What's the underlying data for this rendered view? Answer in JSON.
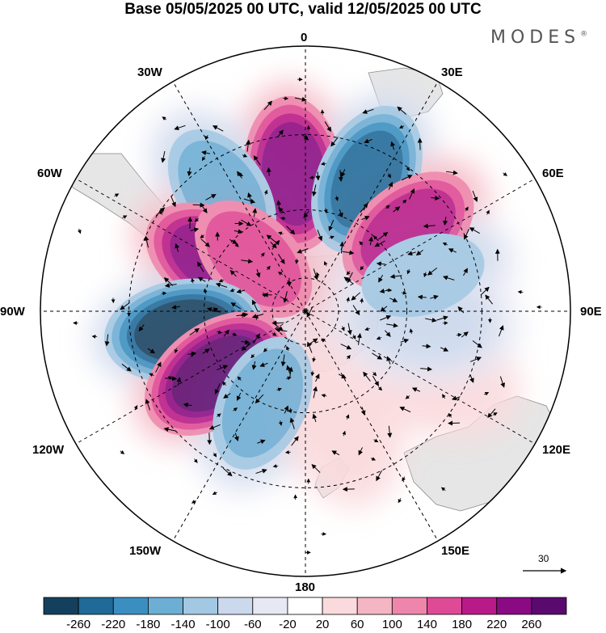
{
  "title": "Base 05/05/2025 00 UTC, valid 12/05/2025 00 UTC",
  "brand": "MODES",
  "brand_mark": "®",
  "longitude_labels": {
    "n0": "0",
    "n30e": "30E",
    "n60e": "60E",
    "n90e": "90E",
    "n120e": "120E",
    "n150e": "150E",
    "n180": "180",
    "n150w": "150W",
    "n120w": "120W",
    "n90w": "90W",
    "n60w": "60W",
    "n30w": "30W"
  },
  "reference_vector": {
    "label": "30"
  },
  "colorbar": {
    "ticks": [
      "-260",
      "-220",
      "-180",
      "-140",
      "-100",
      "-60",
      "-20",
      "20",
      "60",
      "100",
      "140",
      "180",
      "220",
      "260"
    ],
    "colors": [
      "#14405e",
      "#1f6a98",
      "#3a8fc0",
      "#6daed4",
      "#a3c8e3",
      "#ccd9ec",
      "#e8e8f4",
      "#ffffff",
      "#fadadd",
      "#f4b6c4",
      "#ee86ac",
      "#df4a96",
      "#b81a88",
      "#8a0a84",
      "#5a0a6e"
    ]
  },
  "colors": {
    "land": "#e8e8e8",
    "graticule": "#000000"
  },
  "map": {
    "projection": "south polar stereographic",
    "anomaly_centers": [
      {
        "lon": -5,
        "lat": -50,
        "value": 240
      },
      {
        "lon": 25,
        "lat": -48,
        "value": -240
      },
      {
        "lon": 52,
        "lat": -52,
        "value": 200
      },
      {
        "lon": 73,
        "lat": -54,
        "value": -100
      },
      {
        "lon": -35,
        "lat": -48,
        "value": -160
      },
      {
        "lon": -60,
        "lat": -60,
        "value": 240
      },
      {
        "lon": -45,
        "lat": -68,
        "value": 150
      },
      {
        "lon": -99,
        "lat": -54,
        "value": -260
      },
      {
        "lon": -125,
        "lat": -58,
        "value": 260
      },
      {
        "lon": -155,
        "lat": -60,
        "value": -160
      },
      {
        "lon": 162,
        "lat": -58,
        "value": 40
      },
      {
        "lon": 115,
        "lat": -50,
        "value": 30
      },
      {
        "lon": 95,
        "lat": -55,
        "value": -60
      }
    ]
  }
}
